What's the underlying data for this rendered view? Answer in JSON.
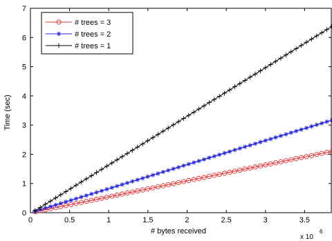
{
  "chart_data": {
    "type": "line",
    "xlabel": "# bytes received",
    "ylabel": "Time (sec)",
    "x_multiplier_label": "x 10",
    "x_multiplier_exponent": "6",
    "xlim": [
      0,
      3.85
    ],
    "ylim": [
      0,
      7
    ],
    "xticks": [
      0,
      0.5,
      1,
      1.5,
      2,
      2.5,
      3,
      3.5
    ],
    "xtick_labels": [
      "0",
      "0.5",
      "1",
      "1.5",
      "2",
      "2.5",
      "3",
      "3.5"
    ],
    "yticks": [
      0,
      1,
      2,
      3,
      4,
      5,
      6,
      7
    ],
    "ytick_labels": [
      "0",
      "1",
      "2",
      "3",
      "4",
      "5",
      "6",
      "7"
    ],
    "grid": false,
    "legend_position": "top-left",
    "series": [
      {
        "name": "# trees = 3",
        "color": "#e03030",
        "marker": "circle",
        "x": [
          0.06,
          3.85
        ],
        "y": [
          0.03,
          2.1
        ]
      },
      {
        "name": "# trees = 2",
        "color": "#2020e0",
        "marker": "star",
        "x": [
          0.06,
          3.85
        ],
        "y": [
          0.05,
          3.17
        ]
      },
      {
        "name": "# trees = 1",
        "color": "#000000",
        "marker": "plus",
        "x": [
          0.06,
          3.85
        ],
        "y": [
          0.07,
          6.38
        ]
      }
    ]
  }
}
